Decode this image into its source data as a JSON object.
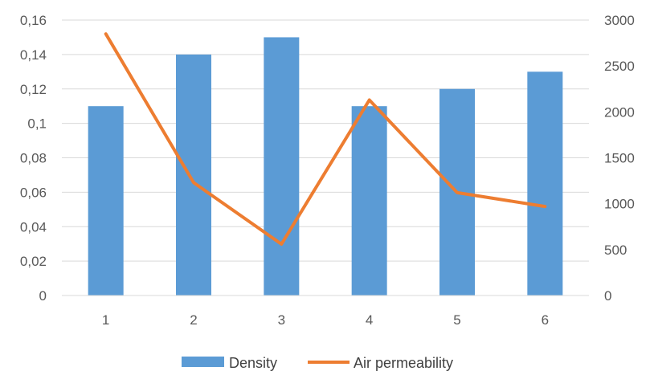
{
  "chart_data": {
    "type": "bar",
    "categories": [
      "1",
      "2",
      "3",
      "4",
      "5",
      "6"
    ],
    "series": [
      {
        "name": "Density",
        "type": "bar",
        "axis": "left",
        "color": "#5B9BD5",
        "values": [
          0.11,
          0.14,
          0.15,
          0.11,
          0.12,
          0.13
        ]
      },
      {
        "name": "Air permeability",
        "type": "line",
        "axis": "right",
        "color": "#ED7D31",
        "values": [
          2850,
          1230,
          560,
          2130,
          1120,
          970
        ]
      }
    ],
    "y_left": {
      "min": 0,
      "max": 0.16,
      "ticks": [
        "0",
        "0,02",
        "0,04",
        "0,06",
        "0,08",
        "0,1",
        "0,12",
        "0,14",
        "0,16"
      ]
    },
    "y_right": {
      "min": 0,
      "max": 3000,
      "ticks": [
        "0",
        "500",
        "1000",
        "1500",
        "2000",
        "2500",
        "3000"
      ]
    },
    "grid": true,
    "gridColor": "#D9D9D9",
    "legend": "bottom"
  }
}
